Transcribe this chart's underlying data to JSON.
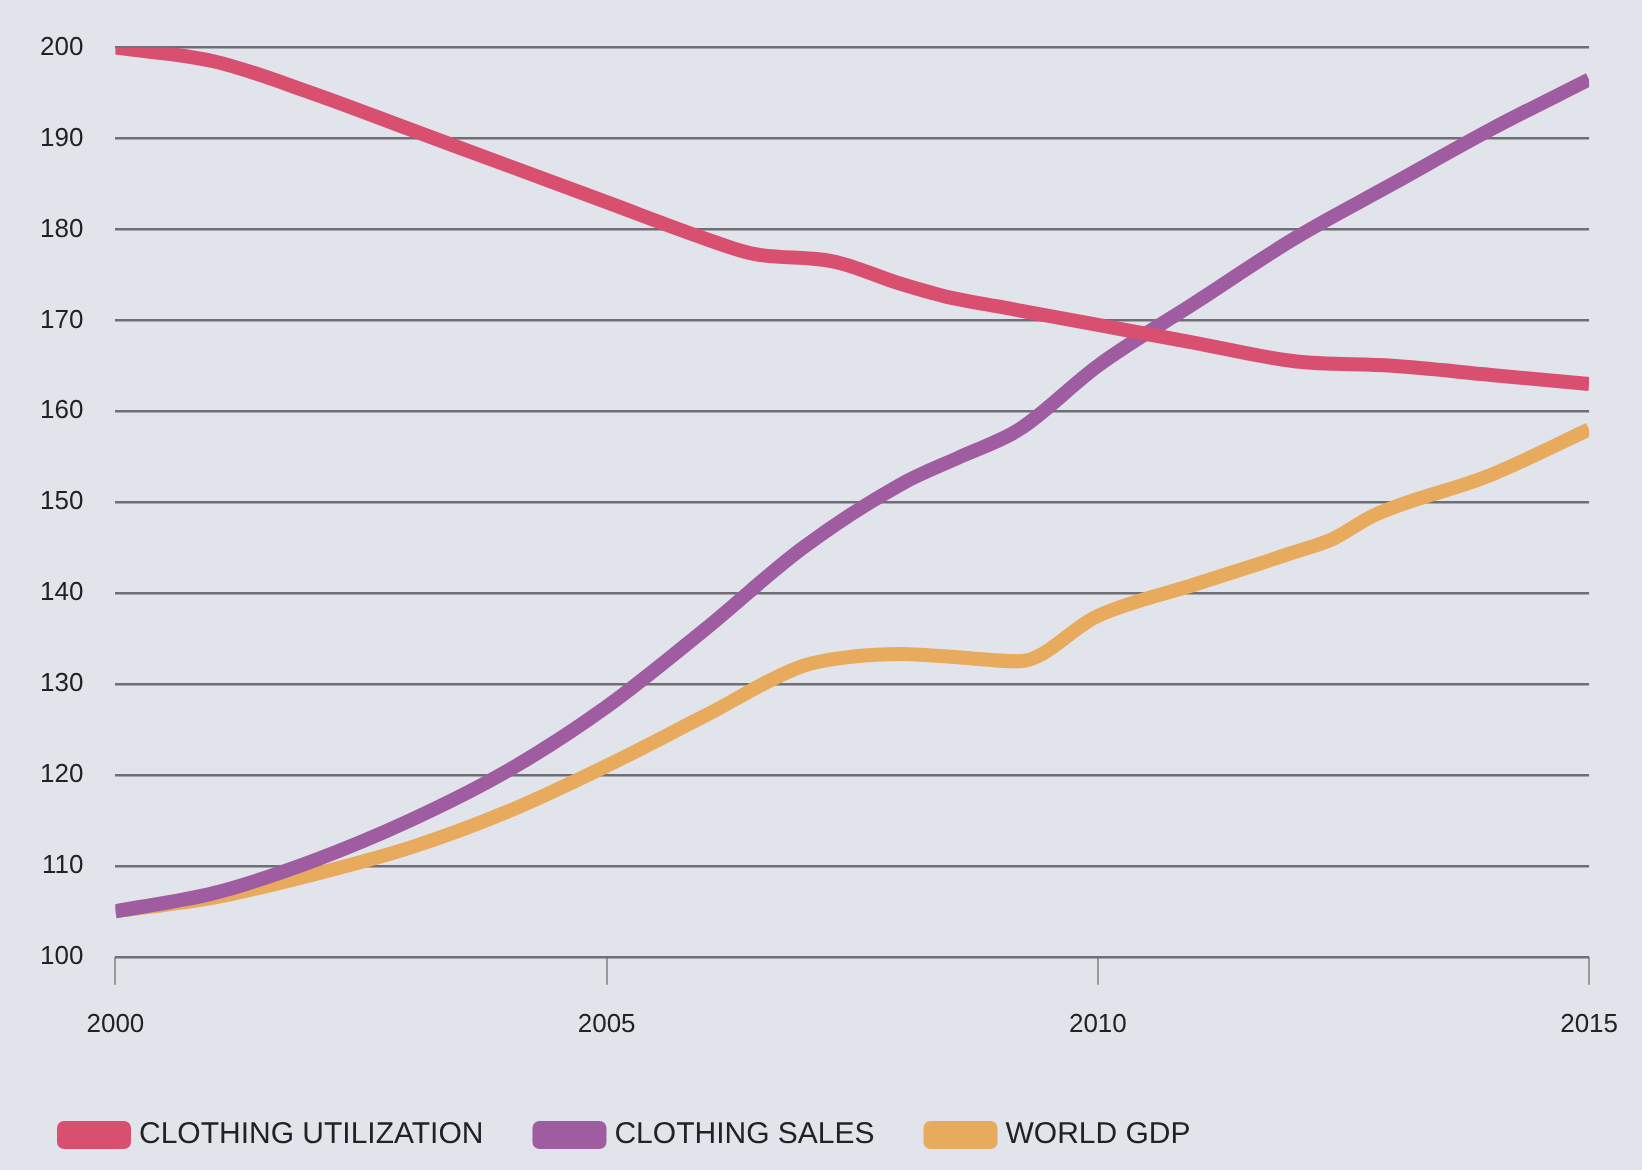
{
  "chart_data": {
    "type": "line",
    "xlim": [
      2000,
      2015
    ],
    "xticks": [
      2000,
      2005,
      2010,
      2015
    ],
    "ylim": [
      100,
      200
    ],
    "yticks": [
      100,
      110,
      120,
      130,
      140,
      150,
      160,
      170,
      180,
      190,
      200
    ],
    "grid": "y",
    "legend": "bottom left",
    "marker": "none",
    "line_style": "solid",
    "series": [
      {
        "name": "CLOTHING UTILIZATION",
        "color": "#d94f6f",
        "x": [
          2000,
          2001,
          2002,
          2003,
          2004,
          2005,
          2006,
          2006.5,
          2007.3,
          2008,
          2008.5,
          2009,
          2010,
          2011,
          2012,
          2013,
          2014,
          2015
        ],
        "values": [
          200,
          198.5,
          195,
          191,
          187,
          183,
          179,
          177.3,
          176.5,
          174,
          172.5,
          171.5,
          169.5,
          167.5,
          165.5,
          165,
          164,
          163
        ]
      },
      {
        "name": "CLOTHING SALES",
        "color": "#a05ca0",
        "x": [
          2000,
          2001,
          2002,
          2003,
          2004,
          2005,
          2006,
          2007,
          2008,
          2008.6,
          2009.2,
          2010,
          2011,
          2012,
          2013,
          2014,
          2015
        ],
        "values": [
          105,
          107,
          110.5,
          115,
          120.5,
          127.5,
          136,
          145,
          152,
          155,
          158,
          165,
          172,
          179,
          185,
          191,
          196.5
        ]
      },
      {
        "name": "WORLD GDP",
        "color": "#e8aa5c",
        "x": [
          2000,
          2001,
          2002,
          2003,
          2004,
          2005,
          2006,
          2007,
          2007.5,
          2008,
          2008.5,
          2009.2,
          2010,
          2011,
          2012,
          2012.4,
          2012.8,
          2014,
          2015
        ],
        "values": [
          105,
          106.5,
          109,
          112,
          116,
          121,
          126.5,
          132,
          133,
          133.3,
          133,
          132.5,
          137.5,
          141,
          144.5,
          146,
          148.5,
          153,
          158
        ]
      }
    ]
  }
}
